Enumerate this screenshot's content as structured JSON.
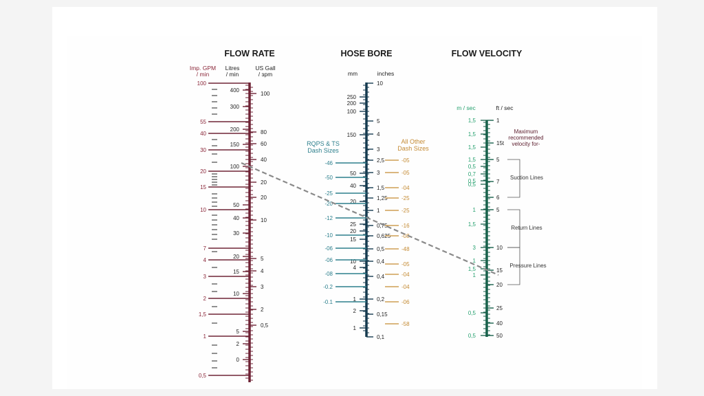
{
  "colors": {
    "flow": "#6e2335",
    "flow_text": "#8a2638",
    "bore": "#153a4f",
    "rqps": "#2c7f8c",
    "other": "#c48a33",
    "velocity": "#17604a",
    "velocity_text": "#25a06e",
    "dash": "#8a8a8a",
    "label_dark": "#222222",
    "note": "#5a1a2a"
  },
  "flow_rate": {
    "title": "FLOW RATE",
    "header_imp": [
      "Imp. GPM",
      "/ min"
    ],
    "header_litres": [
      "Litres",
      "/ min"
    ],
    "header_us": [
      "US Gall",
      "/ ɜpm"
    ],
    "imp_labels": [
      "100",
      "55",
      "40",
      "30",
      "20",
      "15",
      "10",
      "7",
      "4",
      "3",
      "2",
      "1,5",
      "1",
      "0,5"
    ],
    "litre_labels": [
      "400",
      "300",
      "200",
      "150",
      "100",
      "50",
      "40",
      "30",
      "20",
      "15",
      "10",
      "5",
      "2",
      "0"
    ],
    "us_labels": [
      "100",
      "80",
      "60",
      "40",
      "20",
      "20",
      "10",
      "5",
      "4",
      "3",
      "2",
      "0,5"
    ]
  },
  "hose_bore": {
    "title": "HOSE BORE",
    "header_mm": "mm",
    "header_inches": "inches",
    "mm_labels": [
      "250",
      "200",
      "100",
      "150",
      "50",
      "40",
      "20",
      "25",
      "20",
      "15",
      "10",
      "4",
      "1",
      "2",
      "1"
    ],
    "inch_labels": [
      "10",
      "5",
      "4",
      "3",
      "2,5",
      "3",
      "1,5",
      "1,25",
      "1",
      "0,75",
      "0,625",
      "0,5",
      "0,4",
      "0,4",
      "0,2",
      "0,15",
      "0,1"
    ],
    "rqps_title": [
      "RQPS & TS",
      "Dash Sizes"
    ],
    "rqps_labels": [
      "-46",
      "-50",
      "-25",
      "-20",
      "-12",
      "-10",
      "-06",
      "-06",
      "-08",
      "-0.2",
      "-0.1"
    ],
    "other_title": [
      "All Other",
      "Dash Sizes"
    ],
    "other_labels": [
      "-05",
      "-05",
      "-04",
      "-25",
      "-25",
      "-16",
      "-08",
      "-48",
      "-05",
      "-04",
      "-04",
      "-06",
      "-58"
    ]
  },
  "flow_velocity": {
    "title": "FLOW VELOCITY",
    "header_ms": "m / sec",
    "header_fts": "ft / sec",
    "ms_labels": [
      "1,5",
      "1,5",
      "1,5",
      "1,5",
      "0,5",
      "0,7",
      "0,5",
      "0,5",
      "1",
      "1,5",
      "3",
      "1",
      "1,5",
      "1",
      "0,5",
      "0,5"
    ],
    "fts_labels": [
      "1",
      "15t",
      "5",
      "7",
      "6",
      "5",
      "10",
      "15",
      "20",
      "25",
      "40",
      "50"
    ],
    "max_note": [
      "Maximum",
      "recommended",
      "velocity for-"
    ],
    "suction": "Suction Lines",
    "return": "Return Lines",
    "pressure": "Pressure Lines"
  }
}
